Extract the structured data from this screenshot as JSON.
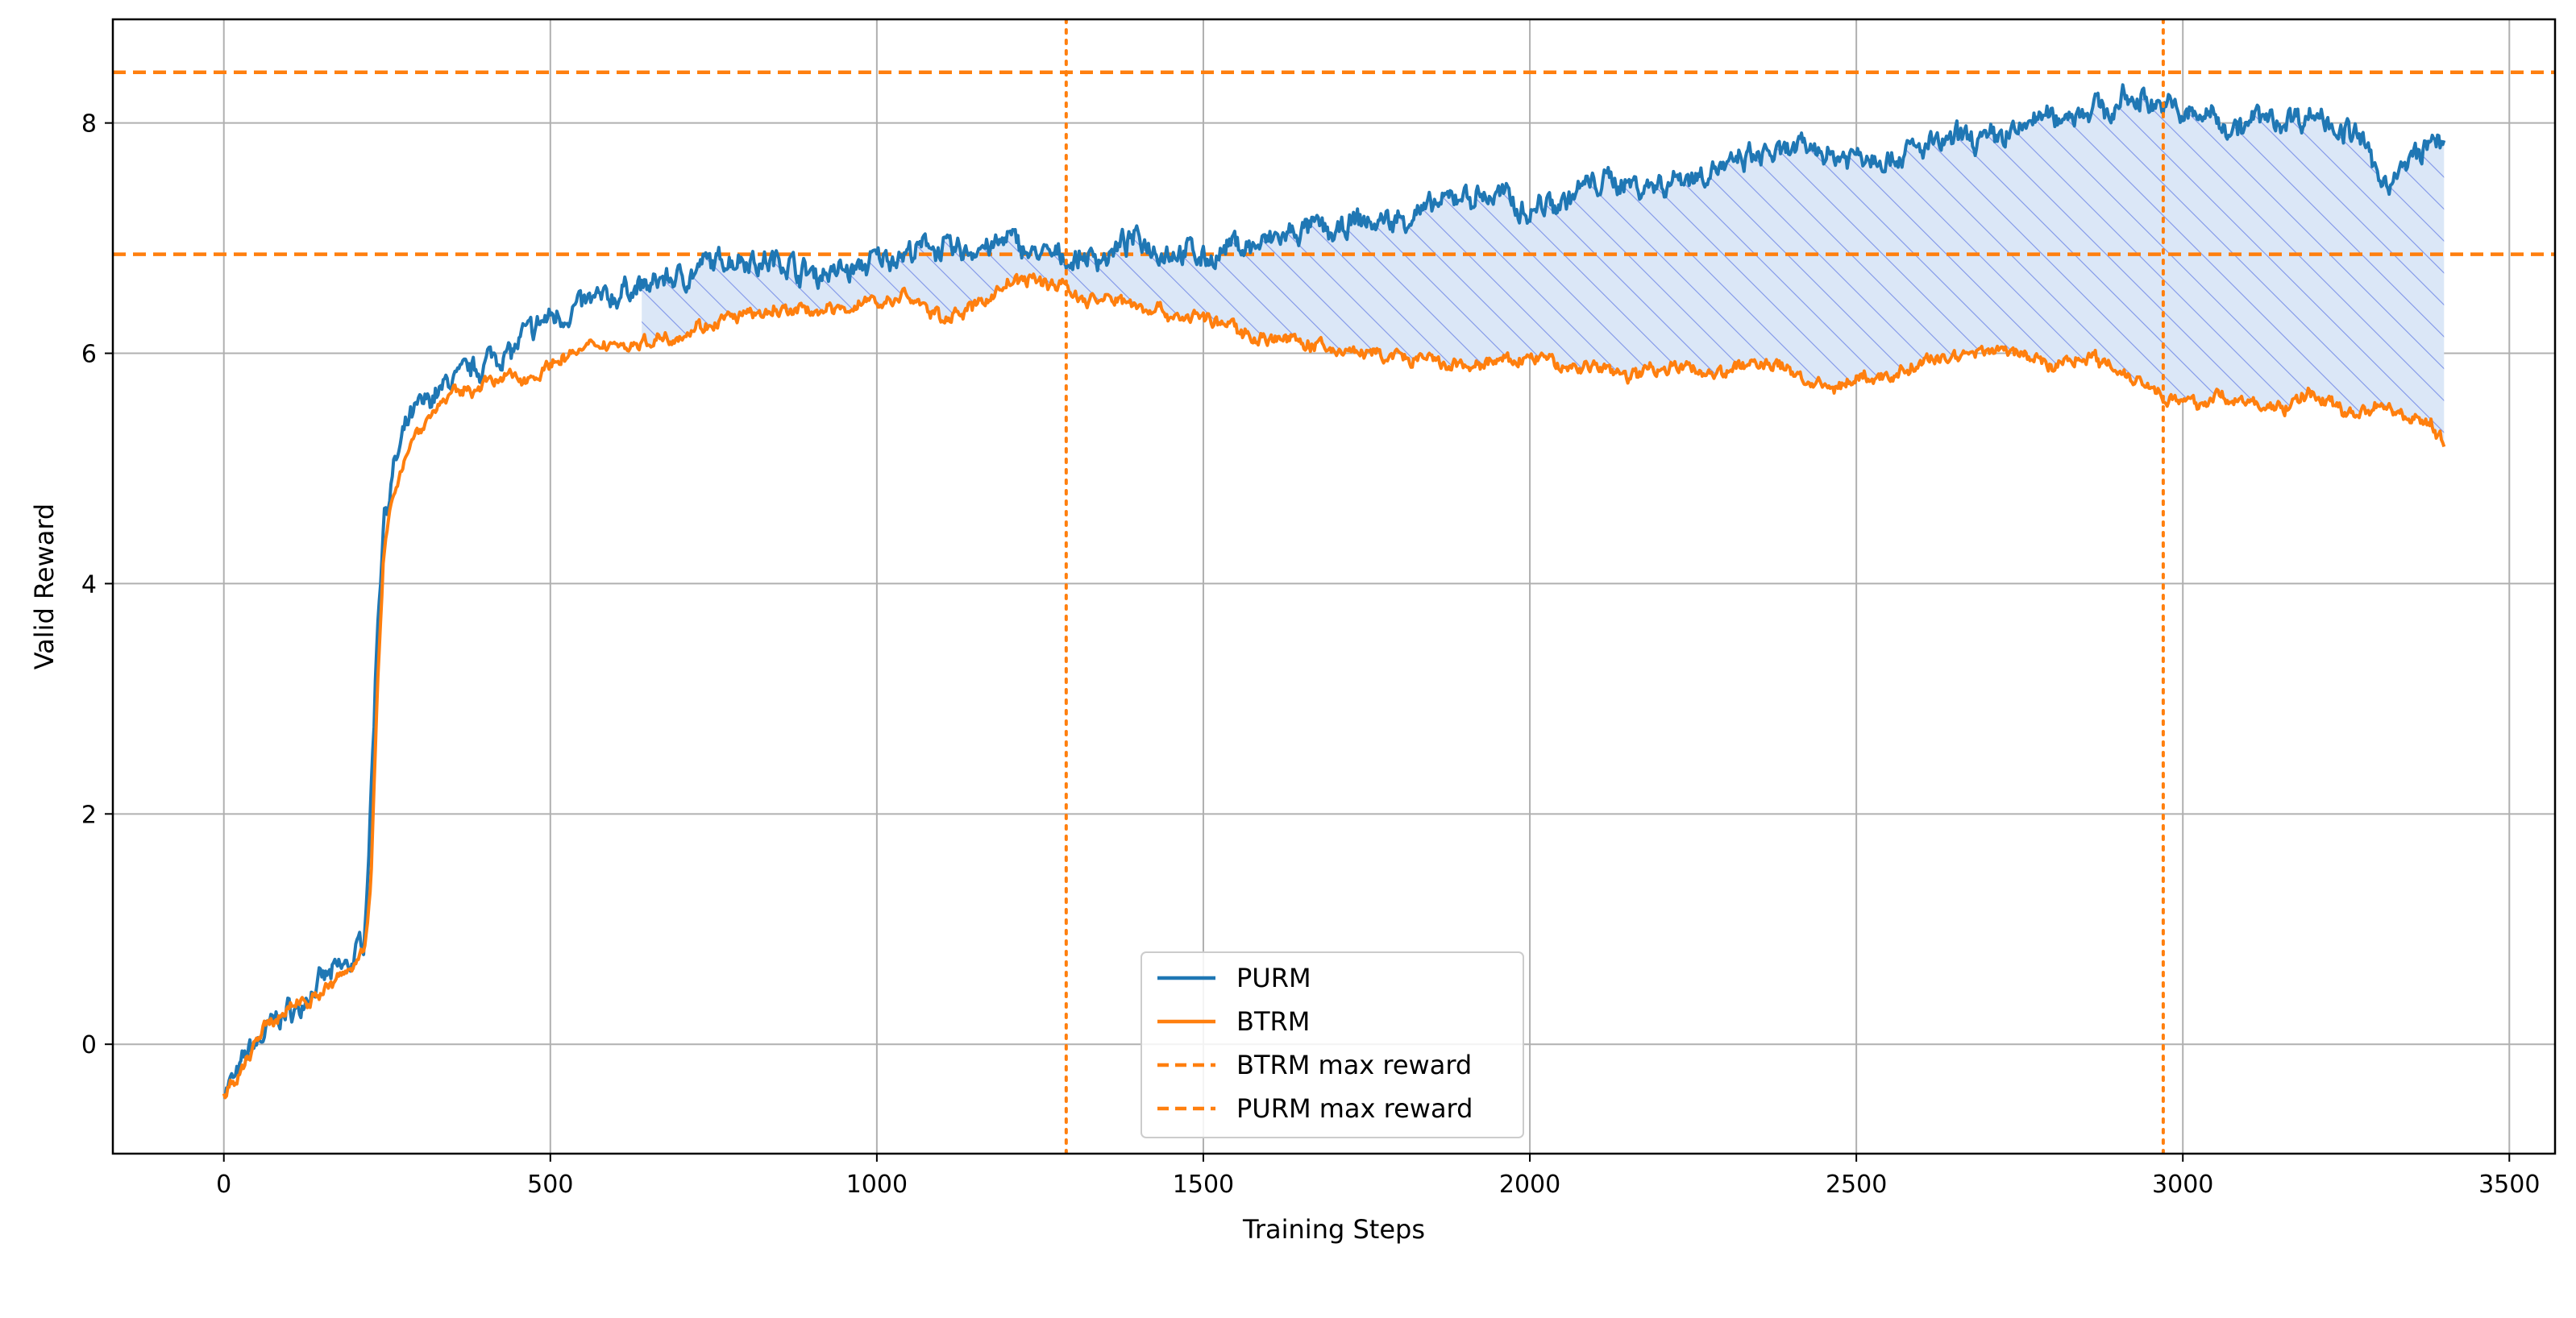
{
  "chart_data": {
    "type": "line",
    "title": "",
    "xlabel": "Training Steps",
    "ylabel": "Valid Reward",
    "xlim": [
      -170,
      3570
    ],
    "ylim": [
      -0.95,
      8.9
    ],
    "xticks": [
      0,
      500,
      1000,
      1500,
      2000,
      2500,
      3000,
      3500
    ],
    "yticks": [
      0,
      2,
      4,
      6,
      8
    ],
    "grid": true,
    "legend_position": "bottom-center",
    "colors": {
      "PURM": "#1f77b4",
      "BTRM": "#ff7f0e",
      "shade_fill": "#dbe7f7",
      "hatch": "#7f95e8",
      "grid": "#b0b0b0"
    },
    "series": [
      {
        "name": "PURM",
        "x": [
          0,
          20,
          40,
          60,
          80,
          100,
          120,
          150,
          180,
          200,
          215,
          225,
          235,
          245,
          260,
          280,
          300,
          330,
          350,
          400,
          450,
          500,
          550,
          600,
          650,
          700,
          750,
          800,
          850,
          900,
          950,
          1000,
          1050,
          1100,
          1150,
          1200,
          1250,
          1300,
          1350,
          1400,
          1450,
          1500,
          1550,
          1600,
          1650,
          1700,
          1750,
          1800,
          1850,
          1900,
          1950,
          2000,
          2050,
          2100,
          2150,
          2200,
          2250,
          2300,
          2350,
          2400,
          2450,
          2500,
          2550,
          2600,
          2650,
          2700,
          2750,
          2800,
          2850,
          2900,
          2950,
          2970,
          3000,
          3050,
          3100,
          3150,
          3200,
          3250,
          3280,
          3300,
          3320,
          3350,
          3380,
          3400
        ],
        "values": [
          -0.4,
          -0.3,
          -0.05,
          0.1,
          0.25,
          0.3,
          0.35,
          0.5,
          0.65,
          0.75,
          0.95,
          2.1,
          3.6,
          4.6,
          5.0,
          5.3,
          5.5,
          5.7,
          5.8,
          5.95,
          6.1,
          6.3,
          6.45,
          6.5,
          6.6,
          6.7,
          6.75,
          6.85,
          6.8,
          6.7,
          6.75,
          6.8,
          6.85,
          6.9,
          6.9,
          6.95,
          6.85,
          6.8,
          6.85,
          6.95,
          6.9,
          6.85,
          6.9,
          6.95,
          7.0,
          7.05,
          7.1,
          7.15,
          7.25,
          7.35,
          7.35,
          7.3,
          7.4,
          7.45,
          7.5,
          7.5,
          7.55,
          7.6,
          7.65,
          7.7,
          7.75,
          7.75,
          7.7,
          7.8,
          7.85,
          7.9,
          8.0,
          8.1,
          8.1,
          8.15,
          8.2,
          8.2,
          8.1,
          8.05,
          8.05,
          8.05,
          8.05,
          8.0,
          7.8,
          7.45,
          7.5,
          7.7,
          7.8,
          7.85
        ]
      },
      {
        "name": "BTRM",
        "x": [
          0,
          20,
          40,
          60,
          80,
          100,
          120,
          150,
          180,
          200,
          215,
          225,
          235,
          245,
          260,
          280,
          300,
          330,
          350,
          400,
          450,
          500,
          550,
          600,
          650,
          700,
          750,
          800,
          850,
          900,
          950,
          1000,
          1050,
          1100,
          1150,
          1200,
          1250,
          1290,
          1320,
          1350,
          1400,
          1450,
          1500,
          1550,
          1600,
          1650,
          1700,
          1750,
          1800,
          1850,
          1900,
          1950,
          2000,
          2050,
          2100,
          2150,
          2200,
          2250,
          2300,
          2350,
          2400,
          2450,
          2500,
          2550,
          2600,
          2650,
          2700,
          2750,
          2800,
          2850,
          2900,
          2950,
          2970,
          3000,
          3050,
          3100,
          3150,
          3200,
          3250,
          3300,
          3350,
          3380,
          3400
        ],
        "values": [
          -0.4,
          -0.35,
          -0.1,
          0.1,
          0.2,
          0.3,
          0.35,
          0.45,
          0.6,
          0.7,
          0.85,
          1.4,
          3.0,
          4.2,
          4.8,
          5.15,
          5.35,
          5.55,
          5.65,
          5.75,
          5.8,
          5.9,
          6.0,
          6.05,
          6.1,
          6.2,
          6.25,
          6.3,
          6.35,
          6.35,
          6.4,
          6.45,
          6.45,
          6.3,
          6.4,
          6.6,
          6.65,
          6.6,
          6.45,
          6.45,
          6.45,
          6.35,
          6.3,
          6.2,
          6.15,
          6.1,
          6.05,
          6.0,
          5.95,
          5.9,
          5.85,
          5.9,
          5.95,
          5.9,
          5.9,
          5.85,
          5.9,
          5.85,
          5.85,
          5.9,
          5.85,
          5.7,
          5.8,
          5.75,
          5.9,
          6.0,
          6.05,
          6.0,
          5.9,
          6.0,
          5.85,
          5.75,
          5.65,
          5.55,
          5.6,
          5.55,
          5.5,
          5.65,
          5.5,
          5.55,
          5.45,
          5.4,
          5.2
        ],
        "noise": 0.09
      },
      {
        "name": "BTRM max reward",
        "style": "dashed-horizontal",
        "value": 6.86
      },
      {
        "name": "PURM max reward",
        "style": "dashed-horizontal",
        "value": 8.44
      }
    ],
    "vertical_markers": [
      {
        "x": 1290,
        "color": "#ff7f0e",
        "style": "dotted",
        "label": ""
      },
      {
        "x": 2970,
        "color": "#ff7f0e",
        "style": "dotted",
        "label": ""
      }
    ],
    "shaded_region": {
      "between": [
        "PURM",
        "BTRM"
      ],
      "from_x": 640,
      "to_x": 3400,
      "style": "hatched"
    }
  }
}
